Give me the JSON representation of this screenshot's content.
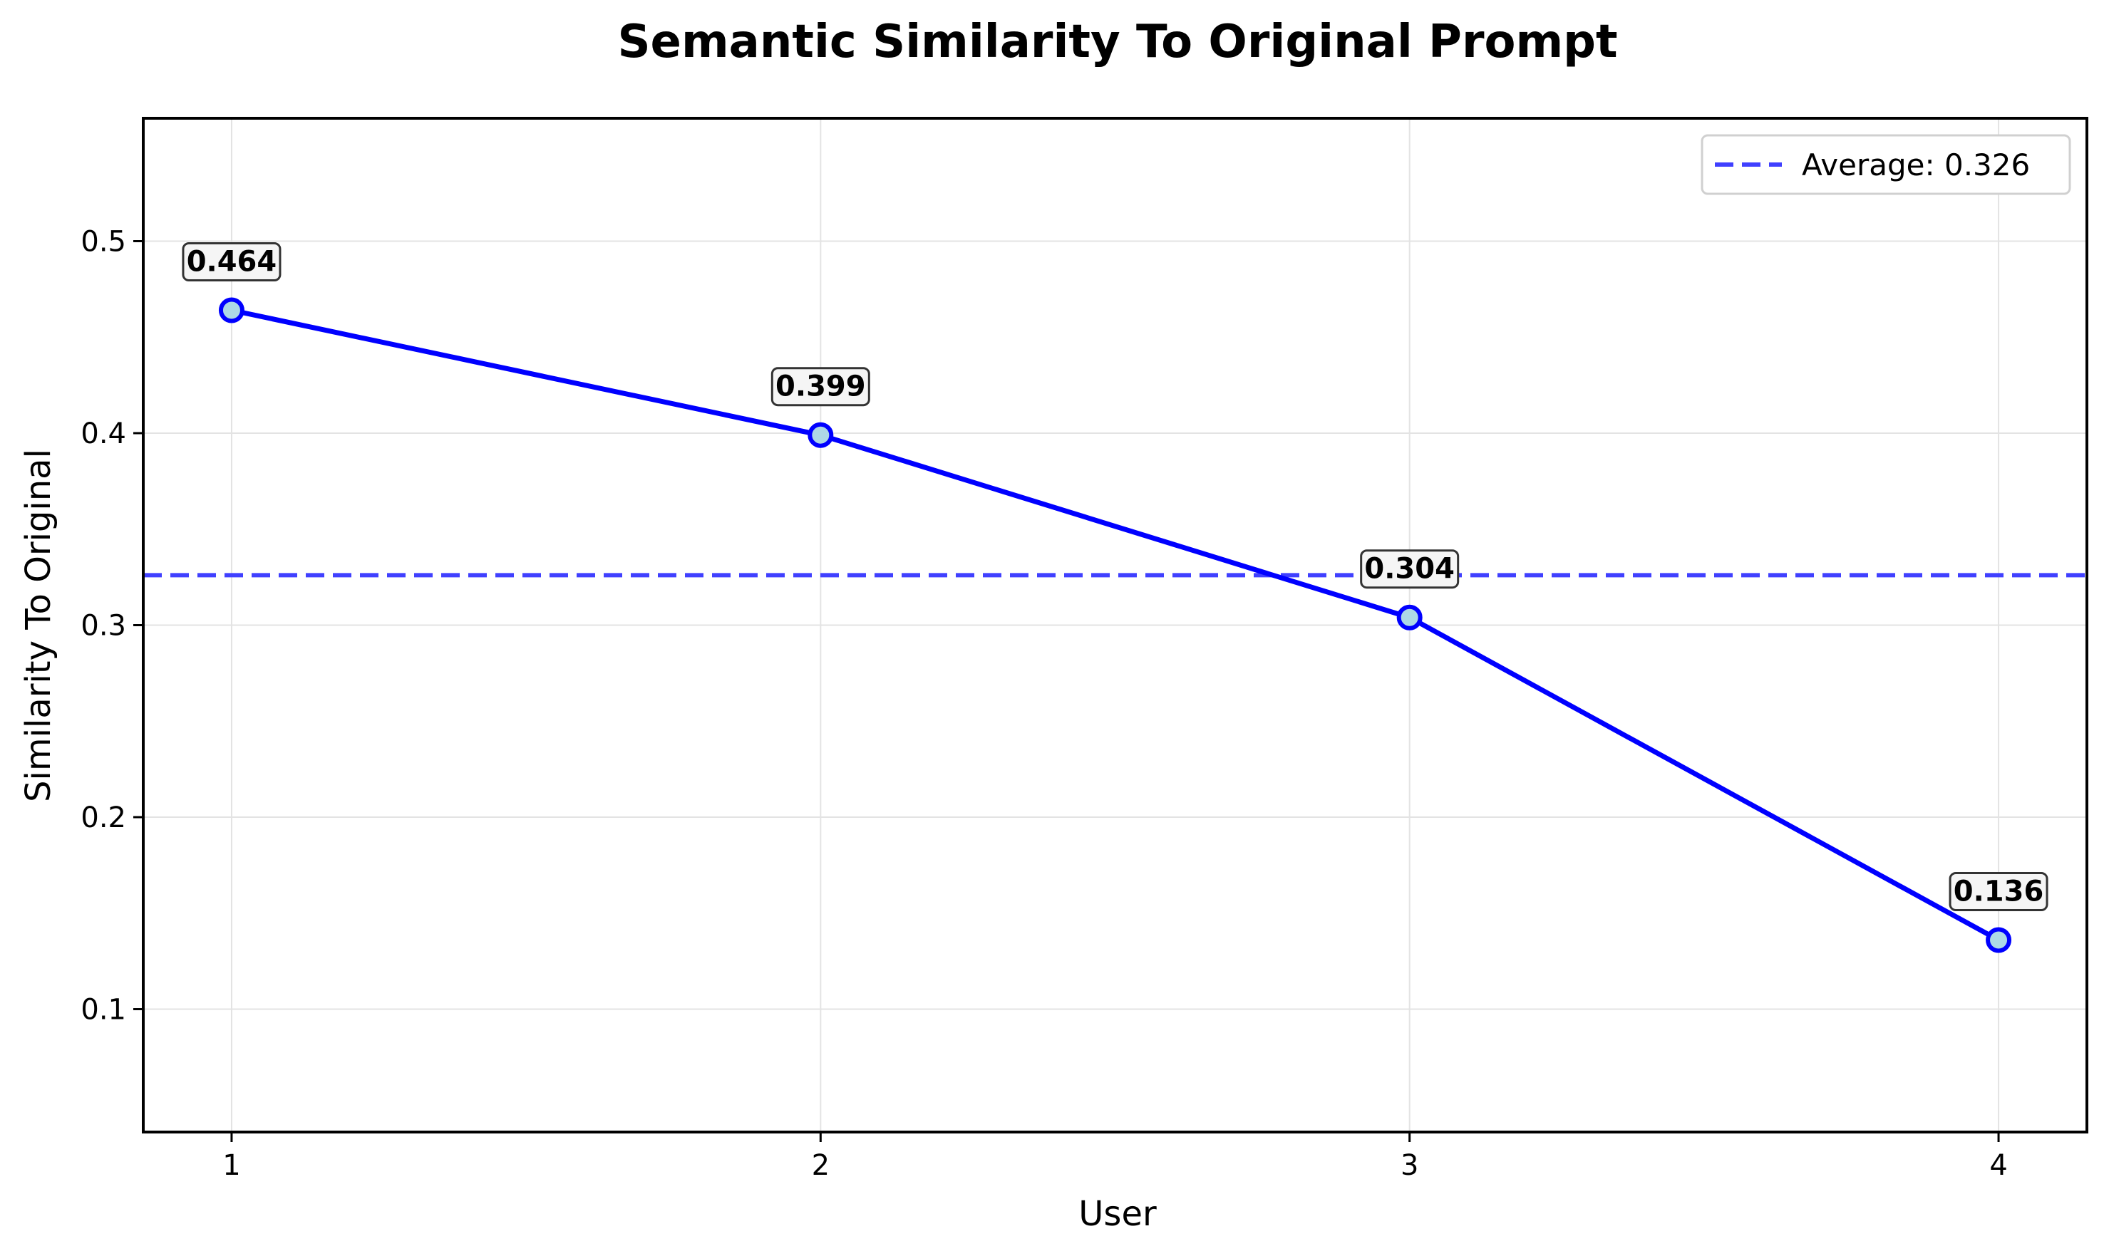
{
  "chart_data": {
    "type": "line",
    "title": "Semantic Similarity To Original Prompt",
    "xlabel": "User",
    "ylabel": "Similarity To Original",
    "x": [
      1,
      2,
      3,
      4
    ],
    "x_tick_labels": [
      "1",
      "2",
      "3",
      "4"
    ],
    "xlim": [
      0.85,
      4.15
    ],
    "ylim": [
      0.036,
      0.564
    ],
    "y_ticks": [
      0.1,
      0.2,
      0.3,
      0.4,
      0.5
    ],
    "y_tick_labels": [
      "0.1",
      "0.2",
      "0.3",
      "0.4",
      "0.5"
    ],
    "series": [
      {
        "values": [
          0.464,
          0.399,
          0.304,
          0.136
        ],
        "data_labels": [
          "0.464",
          "0.399",
          "0.304",
          "0.136"
        ],
        "color": "#0000ff",
        "marker_fill": "#add8e6"
      }
    ],
    "reference_line": {
      "value": 0.326,
      "label": "Average: 0.326",
      "style": "dashed",
      "color": "#4040ff"
    },
    "legend": {
      "placement": "top-right"
    },
    "grid": true
  }
}
